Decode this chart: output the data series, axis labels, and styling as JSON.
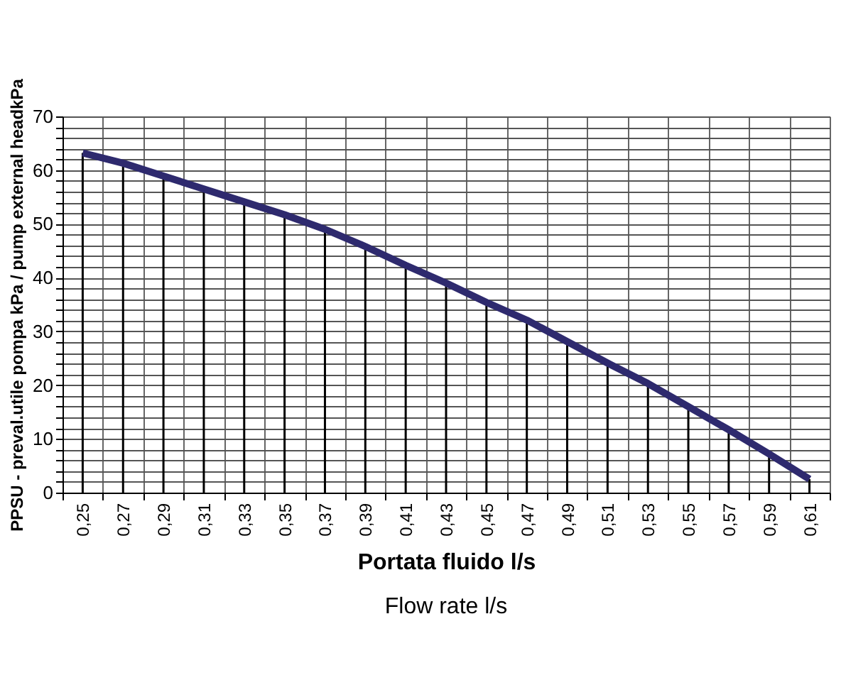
{
  "chart_data": {
    "type": "line",
    "xlabel": "Portata fluido l/s",
    "ylabel": "PPSU - preval.utile pompa kPa / pump external headkPa",
    "annotations": [
      "Flow rate l/s"
    ],
    "categories": [
      "0,25",
      "0,27",
      "0,29",
      "0,31",
      "0,33",
      "0,35",
      "0,37",
      "0,39",
      "0,41",
      "0,43",
      "0,45",
      "0,47",
      "0,49",
      "0,51",
      "0,53",
      "0,55",
      "0,57",
      "0,59",
      "0,61"
    ],
    "series": [
      {
        "type": "bar",
        "color": "#000000",
        "values": [
          63.2,
          61.3,
          58.9,
          56.5,
          54.1,
          51.7,
          49.0,
          45.8,
          42.3,
          39.0,
          35.4,
          32.1,
          28.1,
          24.1,
          20.3,
          16.0,
          11.7,
          7.2,
          2.5
        ]
      },
      {
        "color": "#2e2a6e",
        "values": [
          63.2,
          61.3,
          58.9,
          56.5,
          54.1,
          51.7,
          49.0,
          45.8,
          42.3,
          39.0,
          35.4,
          32.1,
          28.1,
          24.1,
          20.3,
          16.0,
          11.7,
          7.2,
          2.5
        ]
      }
    ],
    "ylim": [
      0,
      70
    ],
    "yticks": [
      0,
      {
        "value": 2,
        "label": null
      },
      {
        "value": 4,
        "label": null
      },
      {
        "value": 6,
        "label": null
      },
      {
        "value": 8,
        "label": null
      },
      10,
      {
        "value": 12,
        "label": null
      },
      {
        "value": 14,
        "label": null
      },
      {
        "value": 16,
        "label": null
      },
      {
        "value": 18,
        "label": null
      },
      20,
      {
        "value": 22,
        "label": null
      },
      {
        "value": 24,
        "label": null
      },
      {
        "value": 26,
        "label": null
      },
      {
        "value": 28,
        "label": null
      },
      30,
      {
        "value": 32,
        "label": null
      },
      {
        "value": 34,
        "label": null
      },
      {
        "value": 36,
        "label": null
      },
      {
        "value": 38,
        "label": null
      },
      40,
      {
        "value": 42,
        "label": null
      },
      {
        "value": 44,
        "label": null
      },
      {
        "value": 46,
        "label": null
      },
      {
        "value": 48,
        "label": null
      },
      50,
      {
        "value": 52,
        "label": null
      },
      {
        "value": 54,
        "label": null
      },
      {
        "value": 56,
        "label": null
      },
      {
        "value": 58,
        "label": null
      },
      60,
      {
        "value": 62,
        "label": null
      },
      {
        "value": 64,
        "label": null
      },
      {
        "value": 66,
        "label": null
      },
      {
        "value": 68,
        "label": null
      },
      70
    ],
    "grid": true,
    "marker": "none",
    "line_style": "solid"
  }
}
